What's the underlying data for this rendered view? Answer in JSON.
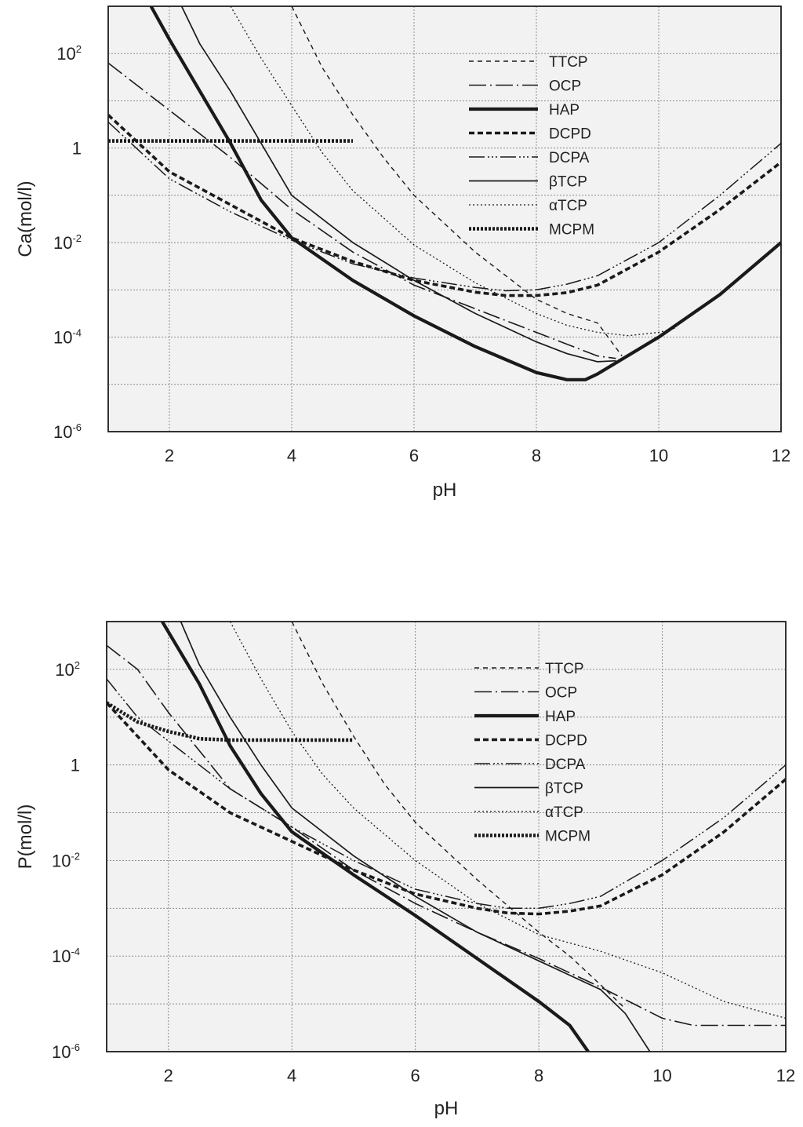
{
  "chart_data": [
    {
      "type": "line",
      "id": "ca-chart",
      "title": "",
      "xlabel": "pH",
      "ylabel": "Ca(mol/l)",
      "xlim": [
        1,
        12
      ],
      "ylim_log10": [
        -6,
        3
      ],
      "x_ticks": [
        {
          "v": 2,
          "label": "2"
        },
        {
          "v": 4,
          "label": "4"
        },
        {
          "v": 6,
          "label": "6"
        },
        {
          "v": 8,
          "label": "8"
        },
        {
          "v": 10,
          "label": "10"
        },
        {
          "v": 12,
          "label": "12"
        }
      ],
      "y_ticks": [
        {
          "v": 2,
          "base": "10",
          "exp": "2"
        },
        {
          "v": 0,
          "base": "1",
          "exp": ""
        },
        {
          "v": -2,
          "base": "10",
          "exp": "-2"
        },
        {
          "v": -4,
          "base": "10",
          "exp": "-4"
        },
        {
          "v": -6,
          "base": "10",
          "exp": "-6"
        }
      ],
      "grid": true,
      "legend": {
        "position": "top-right"
      },
      "series": [
        {
          "name": "TTCP",
          "style": "ttcp",
          "points": [
            [
              4,
              3
            ],
            [
              4.5,
              1.7
            ],
            [
              5,
              0.7
            ],
            [
              5.5,
              -0.2
            ],
            [
              6,
              -1
            ],
            [
              7,
              -2.2
            ],
            [
              8,
              -3.2
            ],
            [
              8.5,
              -3.5
            ],
            [
              9,
              -3.7
            ],
            [
              9.4,
              -4.4
            ]
          ]
        },
        {
          "name": "OCP",
          "style": "ocp",
          "points": [
            [
              1,
              1.8
            ],
            [
              1.5,
              1.3
            ],
            [
              2,
              0.8
            ],
            [
              3,
              -0.2
            ],
            [
              4,
              -1.3
            ],
            [
              5,
              -2.2
            ],
            [
              6,
              -2.9
            ],
            [
              7,
              -3.4
            ],
            [
              8,
              -3.9
            ],
            [
              9,
              -4.4
            ],
            [
              9.3,
              -4.45
            ]
          ]
        },
        {
          "name": "HAP",
          "style": "hap",
          "points": [
            [
              1.7,
              3
            ],
            [
              2,
              2.3
            ],
            [
              2.5,
              1.2
            ],
            [
              3,
              0.1
            ],
            [
              3.5,
              -1.1
            ],
            [
              4,
              -1.9
            ],
            [
              5,
              -2.8
            ],
            [
              6,
              -3.55
            ],
            [
              7,
              -4.2
            ],
            [
              8,
              -4.75
            ],
            [
              8.5,
              -4.9
            ],
            [
              8.8,
              -4.9
            ],
            [
              9,
              -4.78
            ],
            [
              10,
              -4
            ],
            [
              11,
              -3.1
            ],
            [
              12,
              -2
            ]
          ]
        },
        {
          "name": "DCPD",
          "style": "dcpd",
          "points": [
            [
              1,
              0.7
            ],
            [
              2,
              -0.5
            ],
            [
              3,
              -1.2
            ],
            [
              4,
              -1.9
            ],
            [
              5,
              -2.4
            ],
            [
              6,
              -2.8
            ],
            [
              7,
              -3.05
            ],
            [
              7.5,
              -3.12
            ],
            [
              8,
              -3.12
            ],
            [
              8.5,
              -3.06
            ],
            [
              9,
              -2.9
            ],
            [
              10,
              -2.2
            ],
            [
              11,
              -1.3
            ],
            [
              12,
              -0.3
            ]
          ]
        },
        {
          "name": "DCPA",
          "style": "dcpa",
          "points": [
            [
              1,
              0.55
            ],
            [
              2,
              -0.65
            ],
            [
              3,
              -1.35
            ],
            [
              4,
              -1.95
            ],
            [
              5,
              -2.45
            ],
            [
              6,
              -2.75
            ],
            [
              7,
              -2.95
            ],
            [
              7.5,
              -3.02
            ],
            [
              8,
              -3
            ],
            [
              8.5,
              -2.88
            ],
            [
              9,
              -2.7
            ],
            [
              10,
              -2
            ],
            [
              11,
              -1
            ],
            [
              12,
              0.1
            ]
          ]
        },
        {
          "name": "βTCP",
          "style": "btcp",
          "points": [
            [
              2.2,
              3
            ],
            [
              2.5,
              2.2
            ],
            [
              3,
              1.2
            ],
            [
              3.5,
              0.1
            ],
            [
              4,
              -1
            ],
            [
              5,
              -2
            ],
            [
              6,
              -2.8
            ],
            [
              7,
              -3.5
            ],
            [
              8,
              -4.1
            ],
            [
              8.5,
              -4.35
            ],
            [
              9,
              -4.52
            ],
            [
              9.3,
              -4.5
            ]
          ]
        },
        {
          "name": "αTCP",
          "style": "atcp",
          "points": [
            [
              3,
              3
            ],
            [
              3.5,
              1.9
            ],
            [
              4,
              0.9
            ],
            [
              4.5,
              -0.1
            ],
            [
              5,
              -0.9
            ],
            [
              6,
              -2.05
            ],
            [
              7,
              -2.85
            ],
            [
              8,
              -3.5
            ],
            [
              8.5,
              -3.75
            ],
            [
              9,
              -3.9
            ],
            [
              9.5,
              -3.97
            ],
            [
              10,
              -3.9
            ],
            [
              10.3,
              -3.8
            ]
          ]
        },
        {
          "name": "MCPM",
          "style": "mcpm",
          "points": [
            [
              1,
              0.15
            ],
            [
              5,
              0.15
            ]
          ]
        }
      ]
    },
    {
      "type": "line",
      "id": "p-chart",
      "title": "",
      "xlabel": "pH",
      "ylabel": "P(mol/l)",
      "xlim": [
        1,
        12
      ],
      "ylim_log10": [
        -6,
        3
      ],
      "x_ticks": [
        {
          "v": 2,
          "label": "2"
        },
        {
          "v": 4,
          "label": "4"
        },
        {
          "v": 6,
          "label": "6"
        },
        {
          "v": 8,
          "label": "8"
        },
        {
          "v": 10,
          "label": "10"
        },
        {
          "v": 12,
          "label": "12"
        }
      ],
      "y_ticks": [
        {
          "v": 2,
          "base": "10",
          "exp": "2"
        },
        {
          "v": 0,
          "base": "1",
          "exp": ""
        },
        {
          "v": -2,
          "base": "10",
          "exp": "-2"
        },
        {
          "v": -4,
          "base": "10",
          "exp": "-4"
        },
        {
          "v": -6,
          "base": "10",
          "exp": "-6"
        }
      ],
      "grid": true,
      "legend": {
        "position": "top-right"
      },
      "series": [
        {
          "name": "TTCP",
          "style": "ttcp",
          "points": [
            [
              4,
              3
            ],
            [
              4.5,
              1.7
            ],
            [
              5,
              0.6
            ],
            [
              5.5,
              -0.4
            ],
            [
              6,
              -1.2
            ],
            [
              7,
              -2.4
            ],
            [
              8,
              -3.5
            ],
            [
              8.5,
              -4
            ],
            [
              9,
              -4.6
            ],
            [
              9.4,
              -5.1
            ]
          ]
        },
        {
          "name": "OCP",
          "style": "ocp",
          "points": [
            [
              1,
              2.5
            ],
            [
              1.5,
              2
            ],
            [
              2,
              1.1
            ],
            [
              2.5,
              0.3
            ],
            [
              3,
              -0.5
            ],
            [
              4,
              -1.3
            ],
            [
              5,
              -2.2
            ],
            [
              6,
              -2.9
            ],
            [
              7,
              -3.5
            ],
            [
              8,
              -4.05
            ],
            [
              9,
              -4.65
            ],
            [
              10,
              -5.3
            ],
            [
              10.5,
              -5.45
            ],
            [
              12,
              -5.45
            ]
          ]
        },
        {
          "name": "HAP",
          "style": "hap",
          "points": [
            [
              1.9,
              3
            ],
            [
              2.5,
              1.7
            ],
            [
              3,
              0.4
            ],
            [
              3.5,
              -0.6
            ],
            [
              4,
              -1.4
            ],
            [
              5,
              -2.3
            ],
            [
              6,
              -3.15
            ],
            [
              7,
              -4.05
            ],
            [
              8,
              -4.95
            ],
            [
              8.5,
              -5.45
            ],
            [
              8.8,
              -6
            ]
          ]
        },
        {
          "name": "DCPD",
          "style": "dcpd",
          "points": [
            [
              1,
              1.3
            ],
            [
              2,
              -0.1
            ],
            [
              3,
              -1
            ],
            [
              4,
              -1.6
            ],
            [
              5,
              -2.2
            ],
            [
              6,
              -2.7
            ],
            [
              7,
              -3
            ],
            [
              7.5,
              -3.1
            ],
            [
              8,
              -3.12
            ],
            [
              8.5,
              -3.06
            ],
            [
              9,
              -2.95
            ],
            [
              10,
              -2.3
            ],
            [
              11,
              -1.4
            ],
            [
              12,
              -0.3
            ]
          ]
        },
        {
          "name": "DCPA",
          "style": "dcpa",
          "points": [
            [
              1,
              1.8
            ],
            [
              1.5,
              1
            ],
            [
              2,
              0.5
            ],
            [
              3,
              -0.5
            ],
            [
              4,
              -1.3
            ],
            [
              5,
              -2
            ],
            [
              6,
              -2.6
            ],
            [
              7,
              -2.9
            ],
            [
              7.5,
              -3
            ],
            [
              8,
              -3
            ],
            [
              8.5,
              -2.9
            ],
            [
              9,
              -2.75
            ],
            [
              10,
              -2
            ],
            [
              11,
              -1.1
            ],
            [
              12,
              0
            ]
          ]
        },
        {
          "name": "βTCP",
          "style": "btcp",
          "points": [
            [
              2.2,
              3
            ],
            [
              2.5,
              2.1
            ],
            [
              3,
              1
            ],
            [
              3.5,
              0
            ],
            [
              4,
              -0.9
            ],
            [
              5,
              -1.9
            ],
            [
              6,
              -2.75
            ],
            [
              7,
              -3.5
            ],
            [
              8,
              -4.1
            ],
            [
              8.5,
              -4.4
            ],
            [
              9,
              -4.7
            ],
            [
              9.4,
              -5.2
            ],
            [
              9.8,
              -6
            ]
          ]
        },
        {
          "name": "αTCP",
          "style": "atcp",
          "points": [
            [
              3,
              3
            ],
            [
              3.5,
              1.8
            ],
            [
              4,
              0.7
            ],
            [
              4.5,
              -0.2
            ],
            [
              5,
              -0.9
            ],
            [
              6,
              -2
            ],
            [
              7,
              -2.9
            ],
            [
              8,
              -3.55
            ],
            [
              9,
              -3.9
            ],
            [
              10,
              -4.35
            ],
            [
              11,
              -4.95
            ],
            [
              12,
              -5.3
            ]
          ]
        },
        {
          "name": "MCPM",
          "style": "mcpm",
          "points": [
            [
              1,
              1.3
            ],
            [
              1.5,
              0.9
            ],
            [
              2,
              0.7
            ],
            [
              2.5,
              0.55
            ],
            [
              3,
              0.52
            ],
            [
              5,
              0.52
            ]
          ]
        }
      ]
    }
  ],
  "styles": {
    "ttcp": {
      "width": 1.4,
      "dash": "6 5"
    },
    "ocp": {
      "width": 1.6,
      "dash": "22 5 2 5"
    },
    "hap": {
      "width": 4.2,
      "dash": ""
    },
    "dcpd": {
      "width": 3.6,
      "dash": "7 4"
    },
    "dcpa": {
      "width": 1.5,
      "dash": "20 4 2 3 2 3 2 4"
    },
    "btcp": {
      "width": 1.7,
      "dash": ""
    },
    "atcp": {
      "width": 1.3,
      "dash": "2 3"
    },
    "mcpm": {
      "width": 4.6,
      "dash": "3 2"
    }
  }
}
